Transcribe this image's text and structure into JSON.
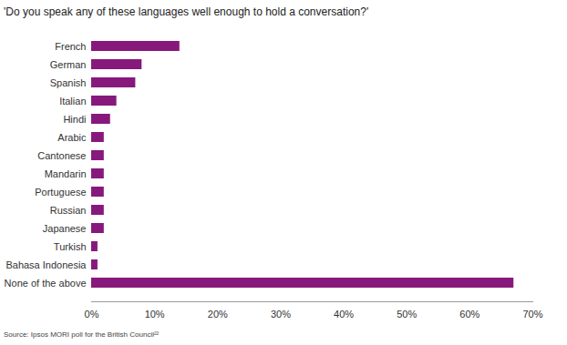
{
  "chart_data": {
    "type": "bar",
    "orientation": "horizontal",
    "title": "'Do you speak any of these languages well enough to hold a conversation?'",
    "caption": "Source: Ipsos MORI poll for the British Council²²",
    "categories": [
      "French",
      "German",
      "Spanish",
      "Italian",
      "Hindi",
      "Arabic",
      "Cantonese",
      "Mandarin",
      "Portuguese",
      "Russian",
      "Japanese",
      "Turkish",
      "Bahasa Indonesia",
      "None of the above"
    ],
    "values": [
      14,
      8,
      7,
      4,
      3,
      2,
      2,
      2,
      2,
      2,
      2,
      1,
      1,
      67
    ],
    "color": "#87197c",
    "xlim": [
      0,
      70
    ],
    "xticks": [
      {
        "value": 0,
        "label": "0%"
      },
      {
        "value": 10,
        "label": "10%"
      },
      {
        "value": 20,
        "label": "20%"
      },
      {
        "value": 30,
        "label": "30%"
      },
      {
        "value": 40,
        "label": "40%"
      },
      {
        "value": 50,
        "label": "50%"
      },
      {
        "value": 60,
        "label": "60%"
      },
      {
        "value": 70,
        "label": "70%"
      }
    ],
    "grid": false,
    "data_labels": false
  }
}
